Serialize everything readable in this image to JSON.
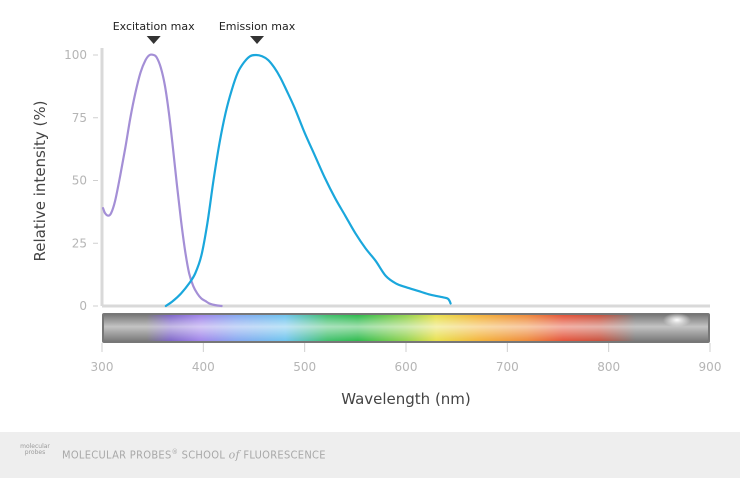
{
  "chart_data": {
    "type": "line",
    "xlabel": "Wavelength (nm)",
    "ylabel": "Relative intensity (%)",
    "xlim": [
      300,
      900
    ],
    "ylim": [
      0,
      100
    ],
    "xticks": [
      300,
      400,
      500,
      600,
      700,
      800,
      900
    ],
    "yticks": [
      0,
      25,
      50,
      75,
      100
    ],
    "grid": false,
    "spectrum_bar": true,
    "series": [
      {
        "role": "excitation",
        "color": "#a48fd6",
        "x": [
          301,
          303,
          306,
          309,
          313,
          318,
          323,
          328,
          333,
          338,
          343,
          347,
          351,
          354,
          358,
          362,
          366,
          370,
          374,
          378,
          382,
          386,
          390,
          394,
          398,
          402,
          406,
          410,
          414,
          418
        ],
        "y": [
          39,
          37,
          36,
          37,
          42,
          52,
          63,
          75,
          85,
          93,
          98,
          100,
          100,
          99,
          95,
          88,
          77,
          63,
          48,
          34,
          22,
          13,
          8,
          5,
          3,
          2,
          1,
          0.5,
          0.2,
          0
        ]
      },
      {
        "role": "emission",
        "color": "#1aa7dc",
        "x": [
          363,
          370,
          378,
          386,
          392,
          398,
          404,
          410,
          416,
          422,
          428,
          434,
          440,
          446,
          452,
          458,
          464,
          470,
          476,
          482,
          490,
          500,
          510,
          520,
          530,
          540,
          550,
          560,
          570,
          580,
          590,
          600,
          612,
          624,
          636,
          641,
          643,
          644
        ],
        "y": [
          0,
          2,
          5,
          9,
          13,
          20,
          33,
          50,
          65,
          77,
          86,
          93,
          97,
          99.5,
          100,
          99.5,
          98,
          95,
          91,
          86,
          79,
          69,
          60,
          51,
          43,
          36,
          29,
          23,
          18,
          12,
          9,
          7.5,
          6,
          4.5,
          3.5,
          3,
          2,
          1
        ]
      }
    ],
    "annotations": [
      {
        "label": "Excitation max",
        "x": 351
      },
      {
        "label": "Emission max",
        "x": 453
      }
    ]
  },
  "footer": {
    "logo_text_1": "molecular",
    "logo_text_2": "probes",
    "brand_text": "MOLECULAR PROBES",
    "brand_mark": "®",
    "brand_school": "SCHOOL",
    "brand_of": "of",
    "brand_fluorescence": "FLUORESCENCE"
  }
}
